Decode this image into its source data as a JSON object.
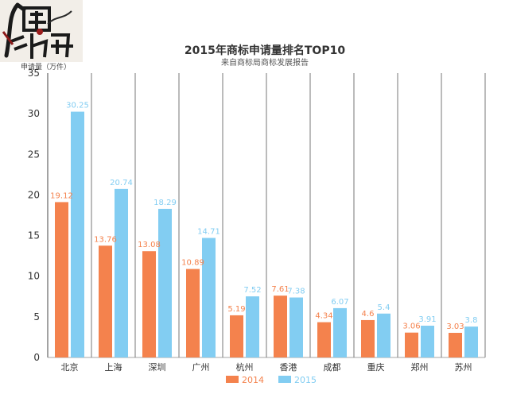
{
  "chart_data": {
    "type": "bar",
    "title": "2015年商标申请量排名TOP10",
    "subtitle": "来自商标局商标发展报告",
    "ylabel": "申请量（万件）",
    "ylim": [
      0,
      35
    ],
    "yticks": [
      0,
      5,
      10,
      15,
      20,
      25,
      30,
      35
    ],
    "grid": "vertical-separators",
    "legend_position": "bottom-center",
    "categories": [
      "北京",
      "上海",
      "深圳",
      "广州",
      "杭州",
      "香港",
      "成都",
      "重庆",
      "郑州",
      "苏州"
    ],
    "series": [
      {
        "name": "2014",
        "color": "#f4824d",
        "values": [
          19.12,
          13.76,
          13.08,
          10.89,
          5.19,
          7.61,
          4.34,
          4.6,
          3.06,
          3.03
        ]
      },
      {
        "name": "2015",
        "color": "#82cdf2",
        "values": [
          30.25,
          20.74,
          18.29,
          14.71,
          7.52,
          7.38,
          6.07,
          5.4,
          3.91,
          3.8
        ]
      }
    ]
  },
  "logo": {
    "text": "商战江湖",
    "icon": "calligraphy-logo-icon"
  }
}
